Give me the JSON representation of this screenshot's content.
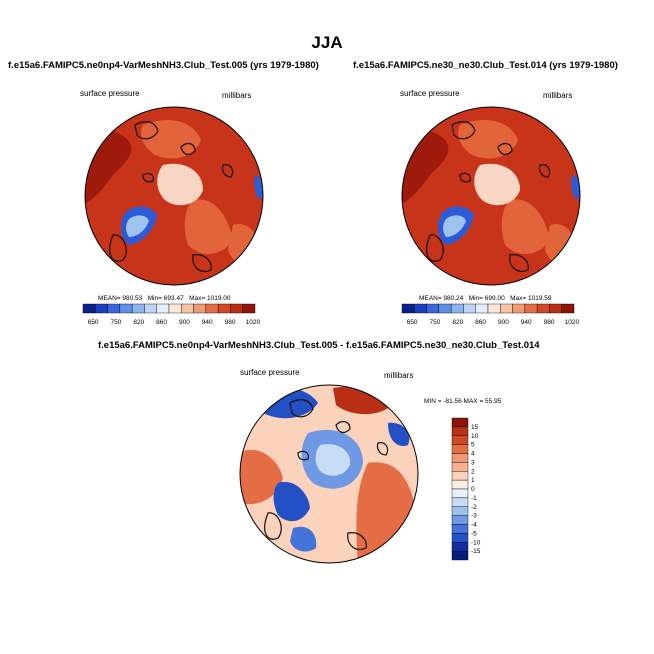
{
  "figure": {
    "title": "JJA"
  },
  "colors": {
    "bg_red": "#c8341a",
    "dark_red": "#9e1a0c",
    "orange": "#e2643a",
    "light": "#f7d7c4",
    "blue": "#2d5bd6",
    "light_blue": "#9dc3ee",
    "coast": "#111111"
  },
  "chart_data": [
    {
      "type": "heatmap",
      "title": "f.e15a6.FAMIPC5.ne0np4-VarMeshNH3.Club_Test.005 (yrs 1979-1980)",
      "variable_label": "surface pressure",
      "units_label": "millibars",
      "stats": {
        "mean_label": "MEAN=",
        "mean": "980.53",
        "min_label": "Min=",
        "min": "693.47",
        "max_label": "Max=",
        "max": "1019.00"
      },
      "colorbar": {
        "levels": [
          "650",
          "750",
          "820",
          "860",
          "900",
          "940",
          "980",
          "1020"
        ],
        "colors": [
          "#0a1e8c",
          "#1b3fbf",
          "#3766d9",
          "#5f8ee6",
          "#8cb3ef",
          "#bcd6f5",
          "#e3eefa",
          "#fbe6da",
          "#f6c2a6",
          "#ef9a73",
          "#e46d45",
          "#d04a26",
          "#b82f16",
          "#8e150a"
        ]
      }
    },
    {
      "type": "heatmap",
      "title": "f.e15a6.FAMIPC5.ne30_ne30.Club_Test.014 (yrs 1979-1980)",
      "variable_label": "surface pressure",
      "units_label": "millibars",
      "stats": {
        "mean_label": "MEAN=",
        "mean": "980.24",
        "min_label": "Min=",
        "min": "699.00",
        "max_label": "Max=",
        "max": "1019.59"
      },
      "colorbar": {
        "levels": [
          "650",
          "750",
          "820",
          "860",
          "900",
          "940",
          "980",
          "1020"
        ],
        "colors": [
          "#0a1e8c",
          "#1b3fbf",
          "#3766d9",
          "#5f8ee6",
          "#8cb3ef",
          "#bcd6f5",
          "#e3eefa",
          "#fbe6da",
          "#f6c2a6",
          "#ef9a73",
          "#e46d45",
          "#d04a26",
          "#b82f16",
          "#8e150a"
        ]
      }
    },
    {
      "type": "heatmap",
      "title": "f.e15a6.FAMIPC5.ne0np4-VarMeshNH3.Club_Test.005 - f.e15a6.FAMIPC5.ne30_ne30.Club_Test.014",
      "variable_label": "surface pressure",
      "units_label": "millibars",
      "range_text": "MIN = -81.56 MAX =  55.95",
      "colorbar": {
        "levels": [
          "15",
          "10",
          "5",
          "4",
          "3",
          "2",
          "1",
          "0",
          "-1",
          "-2",
          "-3",
          "-4",
          "-5",
          "-10",
          "-15"
        ],
        "colors": [
          "#8e150a",
          "#b82f16",
          "#d04a26",
          "#e46d45",
          "#ef9a73",
          "#f6b290",
          "#fbd2bc",
          "#fdeee4",
          "#e9f1fb",
          "#c7dcf5",
          "#9dc0ee",
          "#6f99e4",
          "#4574d8",
          "#2350c4",
          "#132fa3",
          "#081c80"
        ]
      }
    }
  ]
}
